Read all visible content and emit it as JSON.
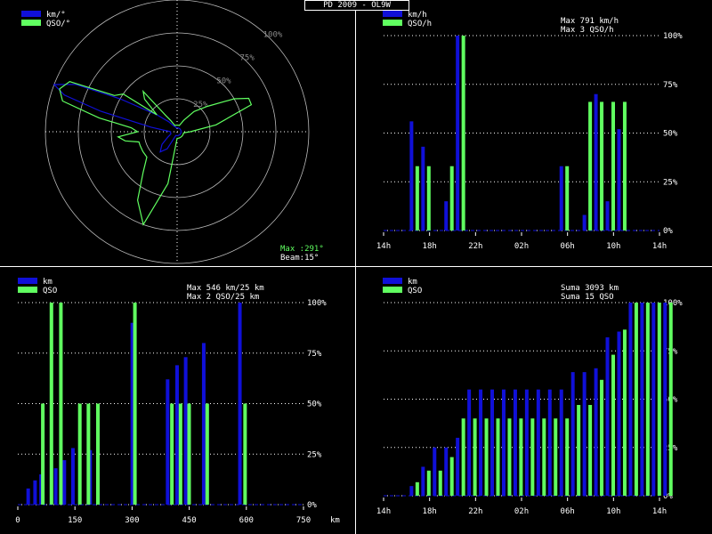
{
  "title": "PD 2009 - OL9W",
  "colors": {
    "blue": "#1010d8",
    "green": "#60ff60",
    "cyan": "#30d0ff",
    "grid": "#bbbbbb",
    "dots": "#ffffff"
  },
  "chart_data": [
    {
      "type": "polar",
      "id": "polar",
      "legend": [
        "km/°",
        "QSO/°"
      ],
      "ring_labels": [
        "25%",
        "50%",
        "75%",
        "100%"
      ],
      "info_lines": [
        "Max :291°",
        "Beam:15°"
      ],
      "series": [
        {
          "name": "km/°",
          "angles": [
            270,
            280,
            285,
            288,
            291,
            295,
            300,
            310,
            320,
            330,
            340,
            350,
            0,
            10,
            20,
            30,
            40,
            50,
            60,
            70,
            80,
            90,
            100,
            110,
            120,
            130,
            140,
            150,
            160,
            170,
            180,
            190,
            200,
            210,
            220,
            230,
            240,
            250,
            260,
            265
          ],
          "values": [
            0.05,
            0.2,
            0.6,
            0.9,
            1.0,
            0.85,
            0.5,
            0.2,
            0.1,
            0.05,
            0.04,
            0.03,
            0.03,
            0.03,
            0.03,
            0.03,
            0.03,
            0.03,
            0.03,
            0.03,
            0.03,
            0.03,
            0.03,
            0.03,
            0.03,
            0.03,
            0.03,
            0.03,
            0.03,
            0.03,
            0.03,
            0.03,
            0.03,
            0.15,
            0.2,
            0.15,
            0.08,
            0.05,
            0.05,
            0.05
          ]
        },
        {
          "name": "QSO/°",
          "angles": [
            0,
            10,
            20,
            30,
            40,
            50,
            60,
            65,
            70,
            80,
            90,
            100,
            110,
            120,
            130,
            140,
            150,
            160,
            170,
            180,
            190,
            200,
            210,
            220,
            230,
            240,
            250,
            255,
            260,
            265,
            270,
            275,
            280,
            285,
            290,
            295,
            300,
            305,
            310,
            315,
            320,
            325,
            330,
            340,
            350
          ],
          "values": [
            0.05,
            0.05,
            0.05,
            0.1,
            0.2,
            0.3,
            0.5,
            0.6,
            0.6,
            0.3,
            0.1,
            0.05,
            0.05,
            0.05,
            0.05,
            0.05,
            0.05,
            0.05,
            0.05,
            0.05,
            0.4,
            0.75,
            0.6,
            0.4,
            0.3,
            0.3,
            0.3,
            0.3,
            0.4,
            0.45,
            0.3,
            0.35,
            0.6,
            0.9,
            0.95,
            0.9,
            0.55,
            0.5,
            0.2,
            0.35,
            0.4,
            0.15,
            0.1,
            0.05,
            0.05
          ]
        }
      ]
    },
    {
      "type": "bar",
      "id": "time1",
      "legend": [
        "km/h",
        "QSO/h"
      ],
      "info_lines": [
        "Max   791 km/h",
        "Max     3 QSO/h"
      ],
      "x_labels": [
        "14h",
        "18h",
        "22h",
        "02h",
        "06h",
        "10h",
        "14h"
      ],
      "y_labels": [
        "0%",
        "25%",
        "50%",
        "75%",
        "100%"
      ],
      "ylim": [
        0,
        100
      ],
      "bins": 24,
      "series": [
        {
          "name": "km/h",
          "values": [
            0,
            0,
            56,
            43,
            0,
            0,
            0,
            15,
            0,
            0,
            0,
            0,
            0,
            0,
            0,
            0,
            0,
            0,
            0,
            0,
            0,
            0,
            0,
            0
          ]
        },
        {
          "name": "QSO/h",
          "values": [
            0,
            0,
            33,
            33,
            0,
            0,
            0,
            33,
            100,
            0,
            0,
            0,
            0,
            0,
            0,
            0,
            0,
            0,
            0,
            0,
            0,
            0,
            0,
            0
          ]
        }
      ],
      "series_offset": [
        {
          "name": "km/h",
          "values": [
            0,
            0,
            0,
            0,
            0,
            0,
            0,
            0,
            0,
            0,
            0,
            0,
            0,
            0,
            0,
            0,
            0,
            0,
            0,
            0,
            0,
            0,
            0,
            0
          ]
        }
      ]
    },
    {
      "type": "bar",
      "id": "dist",
      "legend": [
        "km",
        "QSO"
      ],
      "info_lines": [
        "Max   546 km/25 km",
        "Max     2 QSO/25 km"
      ],
      "x_labels": [
        "0",
        "150",
        "300",
        "450",
        "600",
        "750"
      ],
      "x_extra": "km",
      "y_labels": [
        "0%",
        "25%",
        "50%",
        "75%",
        "100%"
      ],
      "ylim": [
        0,
        100
      ]
    },
    {
      "type": "bar",
      "id": "time2",
      "legend": [
        "km",
        "QSO"
      ],
      "info_lines": [
        "Suma   3093 km",
        "Suma    15 QSO"
      ],
      "x_labels": [
        "14h",
        "18h",
        "22h",
        "02h",
        "06h",
        "10h",
        "14h"
      ],
      "y_labels": [
        "0%",
        "25%",
        "50%",
        "75%",
        "100%"
      ],
      "ylim": [
        0,
        100
      ]
    }
  ],
  "bars_time1": {
    "blue": [
      [
        16.5,
        56
      ],
      [
        17.5,
        43
      ],
      [
        19.5,
        15
      ],
      [
        20.5,
        100
      ],
      [
        29.5,
        33
      ],
      [
        31.5,
        8
      ],
      [
        32.5,
        70
      ],
      [
        33.5,
        15
      ],
      [
        34.5,
        52
      ]
    ],
    "green": [
      [
        17,
        33
      ],
      [
        18,
        33
      ],
      [
        20,
        33
      ],
      [
        21,
        100
      ],
      [
        30,
        33
      ],
      [
        32,
        66
      ],
      [
        33,
        66
      ],
      [
        34,
        66
      ],
      [
        35,
        66
      ]
    ]
  },
  "bars_dist": {
    "blue": [
      [
        10,
        8
      ],
      [
        18,
        12
      ],
      [
        25,
        15
      ],
      [
        42,
        18
      ],
      [
        52,
        22
      ],
      [
        62,
        28
      ],
      [
        82,
        27
      ],
      [
        131,
        90
      ],
      [
        172,
        62
      ],
      [
        183,
        69
      ],
      [
        193,
        73
      ],
      [
        214,
        80
      ],
      [
        256,
        100
      ]
    ],
    "green": [
      [
        27,
        50
      ],
      [
        37,
        100
      ],
      [
        48,
        100
      ],
      [
        70,
        50
      ],
      [
        80,
        50
      ],
      [
        91,
        50
      ],
      [
        134,
        100
      ],
      [
        177,
        50
      ],
      [
        187,
        50
      ],
      [
        197,
        50
      ],
      [
        218,
        50
      ],
      [
        262,
        50
      ]
    ]
  },
  "bars_time2": {
    "blue": [
      [
        16.5,
        5
      ],
      [
        17.5,
        15
      ],
      [
        18.5,
        25
      ],
      [
        19.5,
        25
      ],
      [
        20.5,
        30
      ],
      [
        21.5,
        55
      ],
      [
        22.5,
        55
      ],
      [
        23.5,
        55
      ],
      [
        24.5,
        55
      ],
      [
        25.5,
        55
      ],
      [
        26.5,
        55
      ],
      [
        27.5,
        55
      ],
      [
        28.5,
        55
      ],
      [
        29.5,
        55
      ],
      [
        30.5,
        64
      ],
      [
        31.5,
        64
      ],
      [
        32.5,
        66
      ],
      [
        33.5,
        82
      ],
      [
        34.5,
        85
      ],
      [
        35.5,
        100
      ],
      [
        36.5,
        100
      ],
      [
        37.5,
        100
      ],
      [
        38.5,
        100
      ]
    ],
    "green": [
      [
        17,
        7
      ],
      [
        18,
        13
      ],
      [
        19,
        13
      ],
      [
        20,
        20
      ],
      [
        21,
        40
      ],
      [
        22,
        40
      ],
      [
        23,
        40
      ],
      [
        24,
        40
      ],
      [
        25,
        40
      ],
      [
        26,
        40
      ],
      [
        27,
        40
      ],
      [
        28,
        40
      ],
      [
        29,
        40
      ],
      [
        30,
        40
      ],
      [
        31,
        47
      ],
      [
        32,
        47
      ],
      [
        33,
        60
      ],
      [
        34,
        73
      ],
      [
        35,
        86
      ],
      [
        36,
        100
      ],
      [
        37,
        100
      ],
      [
        38,
        100
      ],
      [
        39,
        100
      ]
    ]
  }
}
